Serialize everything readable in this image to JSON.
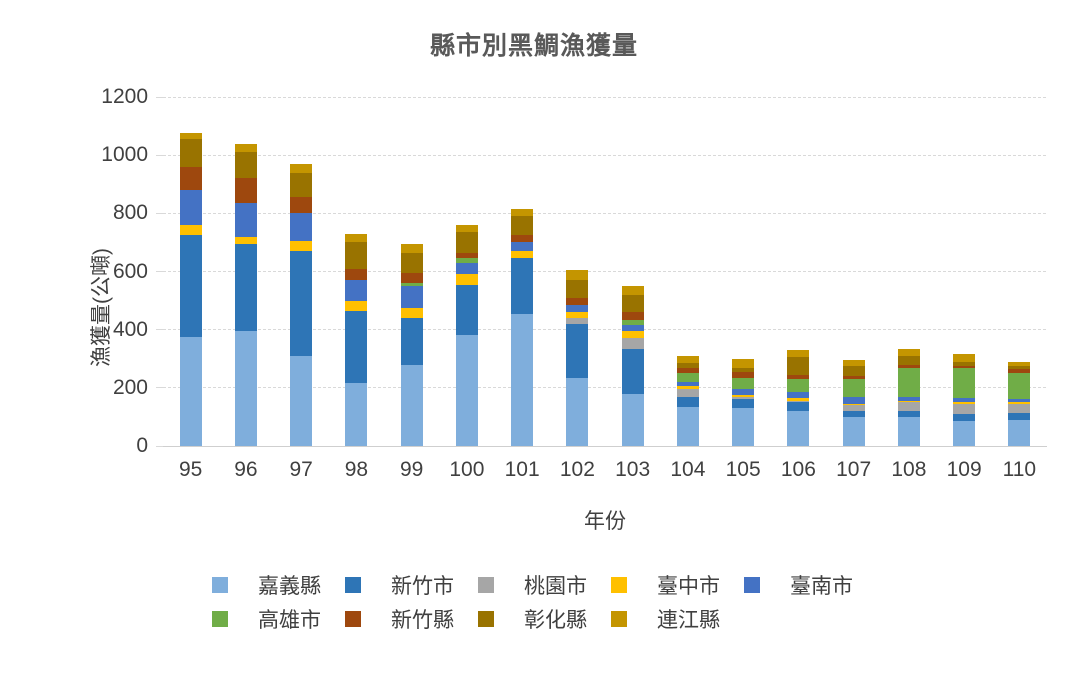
{
  "title": "縣市別黑鯛漁獲量",
  "chart_data": {
    "type": "bar",
    "stacked": true,
    "title": "縣市別黑鯛漁獲量",
    "xlabel": "年份",
    "ylabel": "漁獲量(公噸)",
    "ylim": [
      0,
      1200
    ],
    "yticks": [
      0,
      200,
      400,
      600,
      800,
      1000,
      1200
    ],
    "grid": "horizontal-dashed",
    "legend_position": "bottom",
    "categories": [
      "95",
      "96",
      "97",
      "98",
      "99",
      "100",
      "101",
      "102",
      "103",
      "104",
      "105",
      "106",
      "107",
      "108",
      "109",
      "110"
    ],
    "series": [
      {
        "name": "嘉義縣",
        "color": "#7FAEDC",
        "values": [
          375,
          395,
          310,
          215,
          280,
          380,
          455,
          235,
          180,
          135,
          130,
          120,
          100,
          100,
          85,
          90
        ]
      },
      {
        "name": "新竹市",
        "color": "#2E75B6",
        "values": [
          350,
          300,
          360,
          250,
          160,
          175,
          190,
          185,
          155,
          35,
          30,
          30,
          20,
          20,
          25,
          25
        ]
      },
      {
        "name": "桃園市",
        "color": "#A6A6A6",
        "values": [
          0,
          0,
          0,
          0,
          0,
          0,
          0,
          20,
          35,
          25,
          10,
          5,
          20,
          30,
          35,
          30
        ]
      },
      {
        "name": "臺中市",
        "color": "#FFC000",
        "values": [
          35,
          25,
          35,
          35,
          35,
          35,
          25,
          20,
          25,
          10,
          5,
          10,
          5,
          5,
          5,
          5
        ]
      },
      {
        "name": "臺南市",
        "color": "#4472C4",
        "values": [
          120,
          115,
          95,
          70,
          75,
          40,
          30,
          25,
          20,
          15,
          20,
          20,
          25,
          15,
          15,
          10
        ]
      },
      {
        "name": "高雄市",
        "color": "#70AD47",
        "values": [
          0,
          0,
          0,
          0,
          10,
          15,
          0,
          0,
          20,
          30,
          40,
          45,
          60,
          100,
          105,
          90
        ]
      },
      {
        "name": "新竹縣",
        "color": "#9E480E",
        "values": [
          80,
          85,
          55,
          40,
          35,
          20,
          25,
          25,
          25,
          20,
          20,
          15,
          10,
          10,
          5,
          15
        ]
      },
      {
        "name": "彰化縣",
        "color": "#997300",
        "values": [
          95,
          90,
          85,
          90,
          70,
          70,
          65,
          60,
          60,
          15,
          15,
          60,
          35,
          30,
          15,
          10
        ]
      },
      {
        "name": "連江縣",
        "color": "#C49500",
        "values": [
          20,
          30,
          30,
          30,
          30,
          25,
          25,
          35,
          30,
          25,
          30,
          25,
          20,
          25,
          25,
          15
        ]
      }
    ],
    "legend_rows": [
      [
        "嘉義縣",
        "新竹市",
        "桃園市",
        "臺中市",
        "臺南市"
      ],
      [
        "高雄市",
        "新竹縣",
        "彰化縣",
        "連江縣"
      ]
    ]
  }
}
